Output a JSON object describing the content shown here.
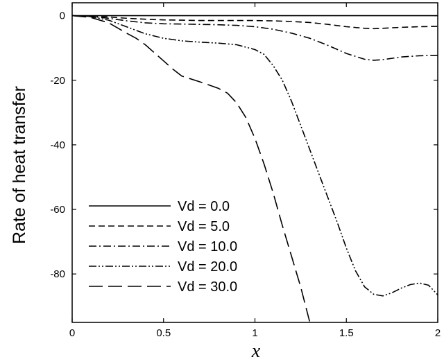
{
  "chart_data": {
    "type": "line",
    "title": "",
    "xlabel": "x",
    "ylabel": "Rate of heat transfer",
    "xlim": [
      0,
      2
    ],
    "ylim": [
      -95,
      4
    ],
    "xticks": [
      0,
      0.5,
      1,
      1.5,
      2
    ],
    "xtick_labels": [
      "0",
      "0.5",
      "1",
      "1.5",
      "2"
    ],
    "yticks": [
      0,
      -20,
      -40,
      -60,
      -80
    ],
    "ytick_labels": [
      "0",
      "-20",
      "-40",
      "-60",
      "-80"
    ],
    "grid": false,
    "legend_position": "bottom-left",
    "series": [
      {
        "name": "Vd = 0.0",
        "dash": "solid",
        "x": [
          0,
          0.5,
          1,
          1.5,
          2
        ],
        "y": [
          0,
          0,
          0,
          0,
          0
        ]
      },
      {
        "name": "Vd = 5.0",
        "dash": "dashed",
        "x": [
          0,
          0.1,
          0.2,
          0.3,
          0.4,
          0.5,
          0.6,
          0.7,
          0.8,
          0.9,
          1.0,
          1.1,
          1.2,
          1.3,
          1.4,
          1.5,
          1.6,
          1.65,
          1.7,
          1.8,
          1.9,
          2.0
        ],
        "y": [
          0,
          -0.1,
          -0.4,
          -0.8,
          -1.1,
          -1.3,
          -1.4,
          -1.5,
          -1.5,
          -1.5,
          -1.5,
          -1.6,
          -1.8,
          -2.1,
          -2.7,
          -3.4,
          -3.9,
          -4.0,
          -3.9,
          -3.6,
          -3.4,
          -3.3
        ]
      },
      {
        "name": "Vd = 10.0",
        "dash": "dashdot",
        "x": [
          0,
          0.1,
          0.2,
          0.3,
          0.4,
          0.5,
          0.6,
          0.7,
          0.8,
          0.9,
          1.0,
          1.1,
          1.2,
          1.3,
          1.4,
          1.5,
          1.6,
          1.65,
          1.7,
          1.8,
          1.9,
          2.0
        ],
        "y": [
          0,
          -0.2,
          -0.8,
          -1.6,
          -2.2,
          -2.5,
          -2.6,
          -2.7,
          -2.8,
          -3.0,
          -3.4,
          -4.2,
          -5.4,
          -7.0,
          -9.2,
          -11.7,
          -13.5,
          -13.8,
          -13.6,
          -12.8,
          -12.4,
          -12.3
        ]
      },
      {
        "name": "Vd = 20.0",
        "dash": "dashdotdot",
        "x": [
          0,
          0.1,
          0.2,
          0.3,
          0.4,
          0.5,
          0.6,
          0.7,
          0.8,
          0.9,
          1.0,
          1.05,
          1.1,
          1.15,
          1.2,
          1.25,
          1.3,
          1.35,
          1.4,
          1.45,
          1.5,
          1.55,
          1.6,
          1.65,
          1.7,
          1.75,
          1.8,
          1.85,
          1.9,
          1.95,
          2.0
        ],
        "y": [
          0,
          -0.3,
          -1.4,
          -3.5,
          -5.6,
          -7.0,
          -7.8,
          -8.2,
          -8.5,
          -9.0,
          -10.5,
          -12.0,
          -15.5,
          -20.0,
          -26.5,
          -34.0,
          -41.5,
          -49.0,
          -56.5,
          -64.0,
          -72.0,
          -79.0,
          -84.0,
          -86.3,
          -86.8,
          -85.8,
          -84.4,
          -83.3,
          -82.8,
          -83.5,
          -86.5
        ]
      },
      {
        "name": "Vd = 30.0",
        "dash": "longdash",
        "x": [
          0,
          0.1,
          0.2,
          0.3,
          0.35,
          0.4,
          0.45,
          0.5,
          0.55,
          0.6,
          0.7,
          0.8,
          0.85,
          0.9,
          0.95,
          1.0,
          1.05,
          1.1,
          1.15,
          1.2,
          1.25,
          1.3
        ],
        "y": [
          0,
          -0.5,
          -2.2,
          -5.5,
          -7.0,
          -9.0,
          -11.5,
          -14.0,
          -16.5,
          -18.7,
          -20.5,
          -22.5,
          -24.0,
          -27.0,
          -31.5,
          -38.0,
          -46.0,
          -55.0,
          -65.0,
          -74.5,
          -84.0,
          -95.0
        ]
      }
    ]
  }
}
